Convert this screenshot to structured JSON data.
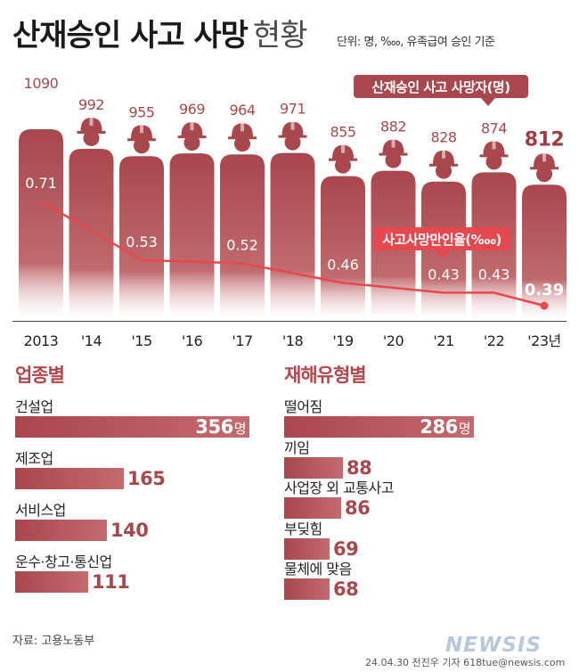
{
  "title": "산재승인 사고 사망",
  "title_sub": "현황",
  "unit_note": "단위: 명, ‱, 유족급여 승인 기준",
  "chart_data": [
    {
      "type": "bar",
      "categories": [
        "2013",
        "'14",
        "'15",
        "'16",
        "'17",
        "'18",
        "'19",
        "'20",
        "'21",
        "'22",
        "'23년"
      ],
      "series": [
        {
          "name": "산재승인 사고 사망자(명)",
          "values": [
            1090,
            992,
            955,
            969,
            964,
            971,
            855,
            882,
            828,
            874,
            812
          ]
        },
        {
          "name": "사고사망만인율(‱)",
          "type": "line",
          "values": [
            0.71,
            null,
            0.53,
            null,
            0.52,
            null,
            0.46,
            null,
            0.43,
            0.43,
            0.39
          ]
        }
      ],
      "bar_color": "#a8474c",
      "line_color": "#e5484d"
    },
    {
      "type": "bar",
      "orientation": "horizontal",
      "title": "업종별",
      "categories": [
        "건설업",
        "제조업",
        "서비스업",
        "운수·창고·통신업"
      ],
      "values": [
        356,
        165,
        140,
        111
      ],
      "unit": "명"
    },
    {
      "type": "bar",
      "orientation": "horizontal",
      "title": "재해유형별",
      "categories": [
        "떨어짐",
        "끼임",
        "사업장 외 교통사고",
        "부딪힘",
        "물체에 맞음"
      ],
      "values": [
        286,
        88,
        86,
        69,
        68
      ],
      "unit": "명"
    }
  ],
  "source": "자료: 고용노동부",
  "logo": "NEWSIS",
  "credit": "24.04.30 전진우 기자 618tue@newsis.com"
}
